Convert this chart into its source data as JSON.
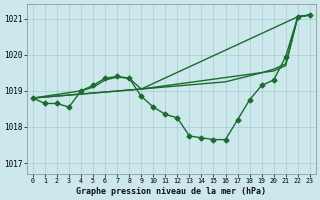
{
  "xlabel_label": "Graphe pression niveau de la mer (hPa)",
  "xlim": [
    -0.5,
    23.5
  ],
  "ylim": [
    1016.7,
    1021.4
  ],
  "yticks": [
    1017,
    1018,
    1019,
    1020,
    1021
  ],
  "xticks": [
    0,
    1,
    2,
    3,
    4,
    5,
    6,
    7,
    8,
    9,
    10,
    11,
    12,
    13,
    14,
    15,
    16,
    17,
    18,
    19,
    20,
    21,
    22,
    23
  ],
  "bg_color": "#cce8ec",
  "grid_color": "#aacccc",
  "line_color": "#1a6b2e",
  "line1_x": [
    0,
    1,
    2,
    3,
    4,
    5,
    6,
    7,
    8,
    9,
    10,
    11,
    12,
    13,
    14,
    15,
    16,
    17,
    18,
    19,
    20,
    21,
    22,
    23
  ],
  "line1_y": [
    1018.8,
    1018.65,
    1018.65,
    1018.55,
    1019.0,
    1019.15,
    1019.35,
    1019.4,
    1019.35,
    1018.85,
    1018.55,
    1018.35,
    1018.25,
    1017.75,
    1017.7,
    1017.65,
    1017.65,
    1018.2,
    1018.75,
    1019.15,
    1019.3,
    1019.95,
    1021.05,
    1021.1
  ],
  "line2_x": [
    0,
    4,
    5,
    6,
    7,
    8,
    9,
    22,
    23
  ],
  "line2_y": [
    1018.8,
    1019.0,
    1019.1,
    1019.3,
    1019.38,
    1019.35,
    1019.05,
    1021.05,
    1021.1
  ],
  "line3_x": [
    0,
    9,
    16,
    19,
    20,
    21,
    22,
    23
  ],
  "line3_y": [
    1018.8,
    1019.05,
    1019.25,
    1019.5,
    1019.6,
    1019.75,
    1021.05,
    1021.1
  ],
  "line4_x": [
    0,
    9,
    20,
    21,
    22,
    23
  ],
  "line4_y": [
    1018.8,
    1019.05,
    1019.55,
    1019.7,
    1021.05,
    1021.1
  ],
  "marker": "D",
  "markersize": 2.5,
  "linewidth": 1.0
}
